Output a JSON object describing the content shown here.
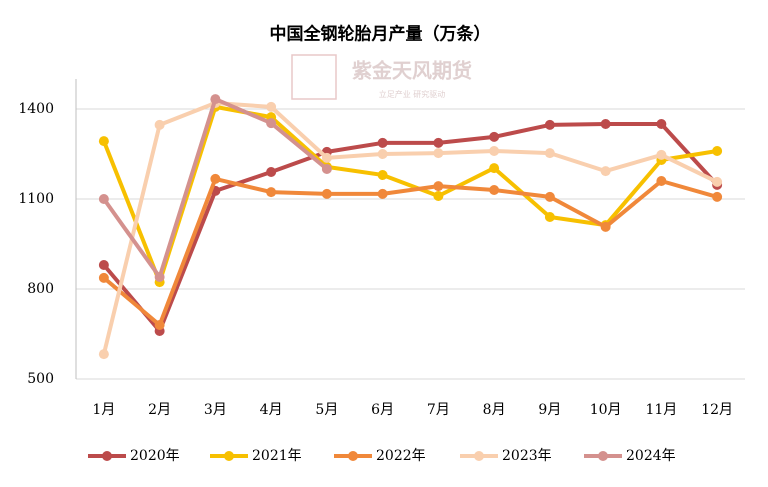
{
  "chart_data": {
    "type": "line",
    "title": "中国全钢轮胎月产量（万条）",
    "watermark": "紫金天风期货",
    "watermark_sub": "立足产业 研究驱动",
    "categories": [
      "1月",
      "2月",
      "3月",
      "4月",
      "5月",
      "6月",
      "7月",
      "8月",
      "9月",
      "10月",
      "11月",
      "12月"
    ],
    "series": [
      {
        "name": "2020年",
        "color": "#bc4b4b",
        "values": [
          880,
          660,
          1127,
          1190,
          1257,
          1287,
          1287,
          1307,
          1347,
          1350,
          1350,
          1147
        ]
      },
      {
        "name": "2021年",
        "color": "#f7c000",
        "values": [
          1293,
          823,
          1407,
          1373,
          1207,
          1180,
          1110,
          1203,
          1040,
          1013,
          1230,
          1260
        ]
      },
      {
        "name": "2022年",
        "color": "#f0883a",
        "values": [
          837,
          680,
          1167,
          1123,
          1117,
          1117,
          1143,
          1130,
          1107,
          1007,
          1160,
          1107
        ]
      },
      {
        "name": "2023年",
        "color": "#f9cfae",
        "values": [
          583,
          1347,
          1420,
          1407,
          1237,
          1250,
          1253,
          1260,
          1253,
          1193,
          1247,
          1157
        ]
      },
      {
        "name": "2024年",
        "color": "#d4918e",
        "values": [
          1100,
          840,
          1433,
          1353,
          1200,
          null,
          null,
          null,
          null,
          null,
          null,
          null
        ]
      }
    ],
    "ylim": [
      500,
      1500
    ],
    "yticks": [
      500,
      800,
      1100,
      1400
    ],
    "grid": true,
    "legend": "bottom"
  }
}
